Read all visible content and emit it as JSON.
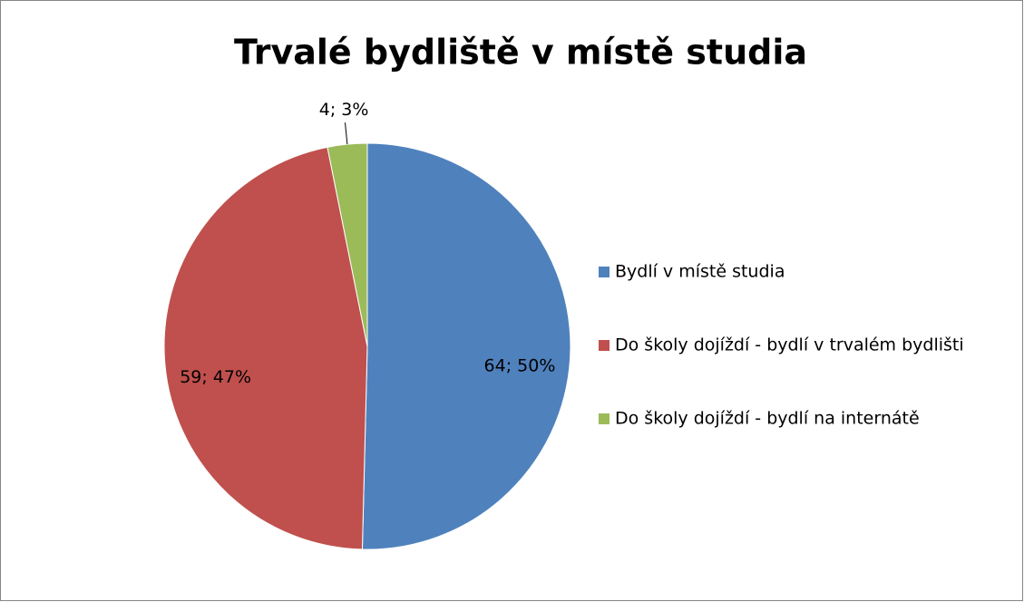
{
  "chart_data": {
    "type": "pie",
    "title": "Trvalé bydliště v místě studia",
    "categories": [
      "Bydlí v místě studia",
      "Do školy dojíždí - bydlí v trvalém bydlišti",
      "Do školy dojíždí - bydlí na internátě"
    ],
    "values": [
      64,
      59,
      4
    ],
    "value_labels": [
      "64; 50%",
      "59; 47%",
      "4; 3%"
    ],
    "colors": [
      "#4f81bd",
      "#c0504d",
      "#9bbb59"
    ],
    "legend": "right"
  }
}
